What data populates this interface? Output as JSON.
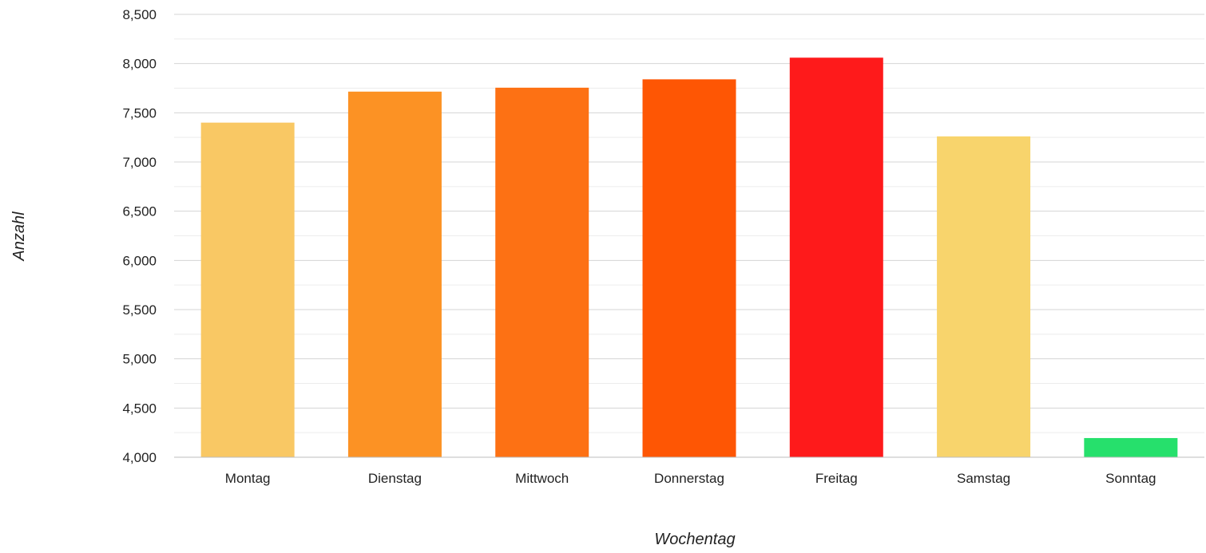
{
  "chart_data": {
    "type": "bar",
    "title": "",
    "xlabel": "Wochentag",
    "ylabel": "Anzahl",
    "categories": [
      "Montag",
      "Dienstag",
      "Mittwoch",
      "Donnerstag",
      "Freitag",
      "Samstag",
      "Sonntag"
    ],
    "values": [
      7400,
      7715,
      7755,
      7840,
      8060,
      7260,
      4195
    ],
    "colors": [
      "#f9c864",
      "#fc9224",
      "#fd7114",
      "#fe5604",
      "#fe1a1b",
      "#f8d46c",
      "#26e06c"
    ],
    "ylim": [
      4000,
      8500
    ],
    "yticks": [
      4000,
      4500,
      5000,
      5500,
      6000,
      6500,
      7000,
      7500,
      8000,
      8500
    ],
    "ytick_labels": [
      "4,000",
      "4,500",
      "5,000",
      "5,500",
      "6,000",
      "6,500",
      "7,000",
      "7,500",
      "8,000",
      "8,500"
    ],
    "grid": true,
    "minor_grid": true,
    "legend": "none"
  }
}
